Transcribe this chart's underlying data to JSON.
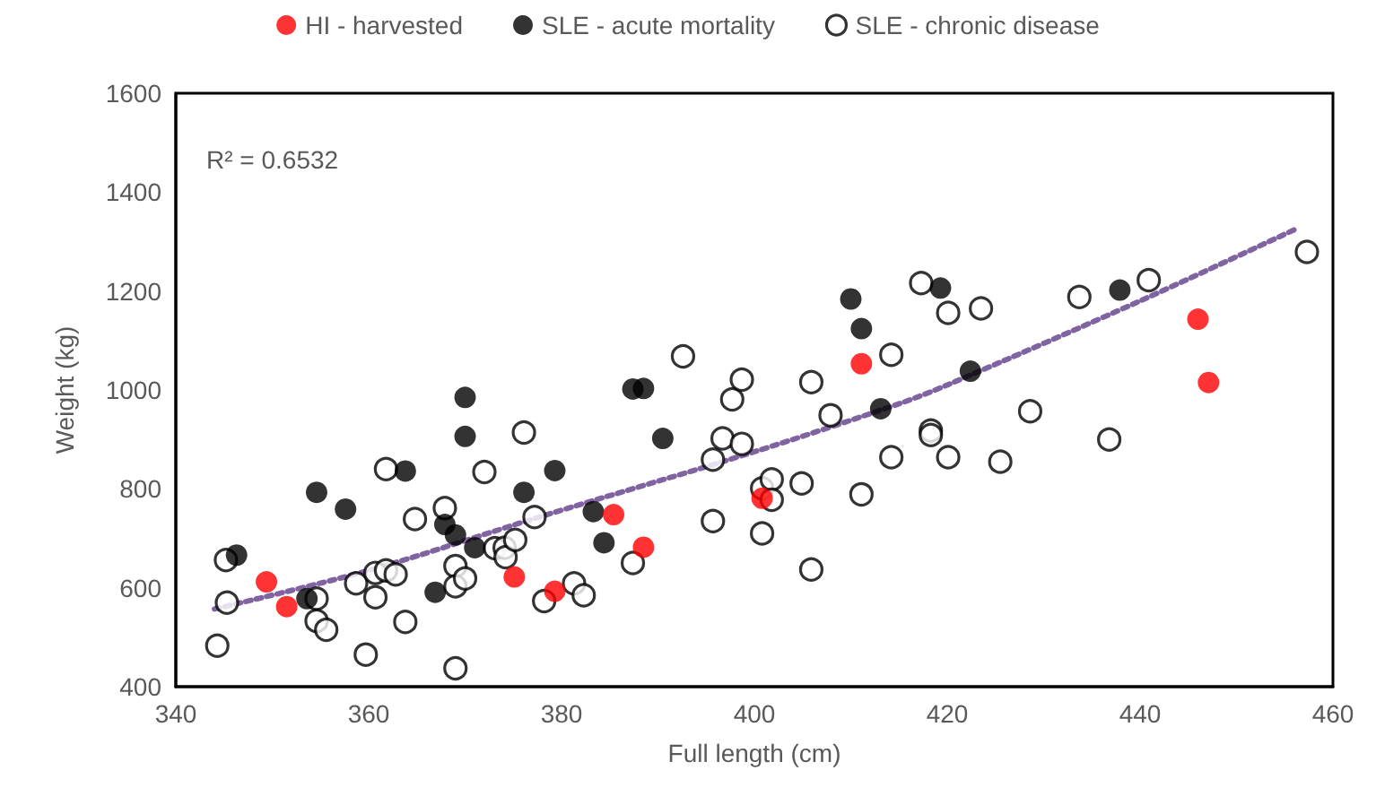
{
  "chart_data": {
    "type": "scatter",
    "xlabel": "Full length (cm)",
    "ylabel": "Weight (kg)",
    "xlim": [
      340,
      460
    ],
    "xticks": [
      340,
      360,
      380,
      400,
      420,
      440,
      460
    ],
    "ylim": [
      400,
      1600
    ],
    "yticks": [
      400,
      600,
      800,
      1000,
      1200,
      1400,
      1600
    ],
    "grid": false,
    "legend": "top",
    "marker": "circle",
    "annotations": [
      "R² = 0.6532"
    ],
    "series": [
      {
        "name": "HI - harvested",
        "color": "#ff0000",
        "x": [
          349.4,
          351.5,
          375.1,
          379.3,
          385.4,
          388.5,
          400.8,
          411.1,
          446,
          447.1
        ],
        "values": [
          612,
          562,
          622,
          593,
          748,
          682,
          781,
          1053,
          1143,
          1015
        ]
      },
      {
        "name": "SLE - acute mortality",
        "color": "#000000",
        "x": [
          346.3,
          353.6,
          354.6,
          357.6,
          363.8,
          370,
          370,
          379.3,
          376.1,
          367.9,
          369,
          371,
          366.9,
          383.3,
          384.4,
          387.4,
          388.5,
          390.5,
          410,
          411.1,
          413.1,
          419.3,
          437.9,
          422.4
        ],
        "values": [
          666,
          578,
          793,
          759,
          836,
          985,
          906,
          837,
          793,
          728,
          707,
          681,
          591,
          754,
          691,
          1002,
          1003,
          902,
          1184,
          1124,
          962,
          1206,
          1202,
          1038
        ]
      },
      {
        "name": "SLE - chronic disease",
        "color": "#ffffff",
        "x": [
          345.2,
          345.3,
          344.3,
          354.6,
          354.6,
          355.6,
          358.7,
          360.7,
          360.7,
          361.8,
          362.8,
          363.8,
          359.7,
          361.8,
          364.8,
          367.9,
          369,
          369,
          370,
          369,
          372,
          376.1,
          373.1,
          374.1,
          374.2,
          375.2,
          377.2,
          378.2,
          381.3,
          382.3,
          387.4,
          392.6,
          395.7,
          395.7,
          396.7,
          398.7,
          397.7,
          398.7,
          400.8,
          401.8,
          401.8,
          400.8,
          404.9,
          405.9,
          405.9,
          407.9,
          411.1,
          414.2,
          414.2,
          417.3,
          418.3,
          418.3,
          420.1,
          420.1,
          423.5,
          433.7,
          440.9,
          457.3,
          428.6,
          425.5,
          436.8
        ],
        "values": [
          656,
          570,
          483,
          578,
          533,
          515,
          609,
          581,
          630,
          635,
          627,
          531,
          465,
          840,
          739,
          761,
          644,
          603,
          619,
          437,
          834,
          914,
          680,
          681,
          662,
          697,
          743,
          573,
          609,
          585,
          650,
          1068,
          735,
          859,
          902,
          891,
          981,
          1021,
          801,
          819,
          778,
          710,
          811,
          1016,
          637,
          949,
          789,
          1071,
          864,
          1216,
          918,
          909,
          1156,
          864,
          1165,
          1188,
          1222,
          1279,
          957,
          855,
          900
        ]
      },
      {
        "type": "line",
        "color": "#8064a2",
        "line_style": "dotted",
        "marker": "none",
        "x": [
          344,
          360,
          378,
          400,
          415,
          420,
          440,
          456
        ],
        "values": [
          557,
          635,
          745,
          875,
          972,
          1010,
          1180,
          1324
        ]
      }
    ]
  }
}
